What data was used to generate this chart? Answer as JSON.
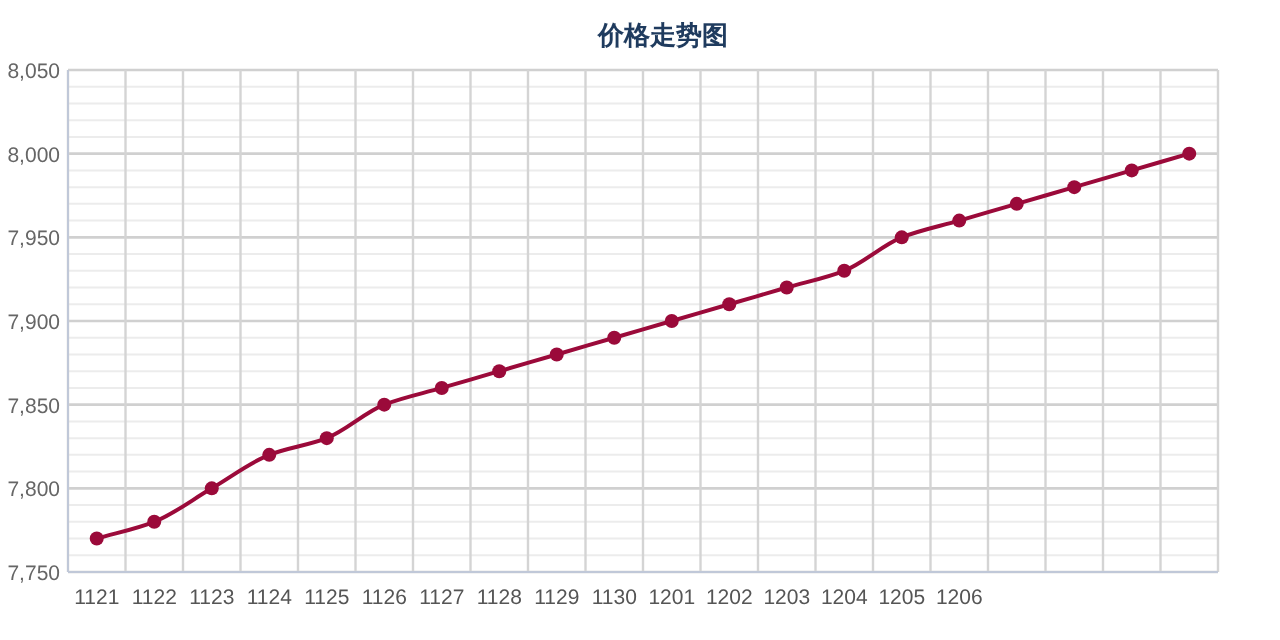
{
  "chart_data": {
    "type": "line",
    "title": "价格走势图",
    "categories": [
      "1121",
      "1122",
      "1123",
      "1124",
      "1125",
      "1126",
      "1127",
      "1128",
      "1129",
      "1130",
      "1201",
      "1202",
      "1203",
      "1204",
      "1205",
      "1206",
      null,
      null,
      null,
      null
    ],
    "series": [
      {
        "color": "#9b0a3a",
        "values": [
          7770,
          7780,
          7800,
          7820,
          7830,
          7850,
          7860,
          7870,
          7880,
          7890,
          7900,
          7910,
          7920,
          7930,
          7950,
          7960,
          7970,
          7980,
          7990,
          8000
        ]
      }
    ],
    "ylim": [
      7750,
      8050
    ],
    "yticks": [
      {
        "value": 7750,
        "label": "7,750"
      },
      {
        "value": 7760,
        "label": null
      },
      {
        "value": 7770,
        "label": null
      },
      {
        "value": 7780,
        "label": null
      },
      {
        "value": 7790,
        "label": null
      },
      {
        "value": 7800,
        "label": "7,800"
      },
      {
        "value": 7810,
        "label": null
      },
      {
        "value": 7820,
        "label": null
      },
      {
        "value": 7830,
        "label": null
      },
      {
        "value": 7840,
        "label": null
      },
      {
        "value": 7850,
        "label": "7,850"
      },
      {
        "value": 7860,
        "label": null
      },
      {
        "value": 7870,
        "label": null
      },
      {
        "value": 7880,
        "label": null
      },
      {
        "value": 7890,
        "label": null
      },
      {
        "value": 7900,
        "label": "7,900"
      },
      {
        "value": 7910,
        "label": null
      },
      {
        "value": 7920,
        "label": null
      },
      {
        "value": 7930,
        "label": null
      },
      {
        "value": 7940,
        "label": null
      },
      {
        "value": 7950,
        "label": "7,950"
      },
      {
        "value": 7960,
        "label": null
      },
      {
        "value": 7970,
        "label": null
      },
      {
        "value": 7980,
        "label": null
      },
      {
        "value": 7990,
        "label": null
      },
      {
        "value": 8000,
        "label": "8,000"
      },
      {
        "value": 8010,
        "label": null
      },
      {
        "value": 8020,
        "label": null
      },
      {
        "value": 8030,
        "label": null
      },
      {
        "value": 8040,
        "label": null
      },
      {
        "value": 8050,
        "label": "8,050"
      }
    ],
    "grid": true,
    "marker": "circle",
    "line_style": "solid"
  }
}
